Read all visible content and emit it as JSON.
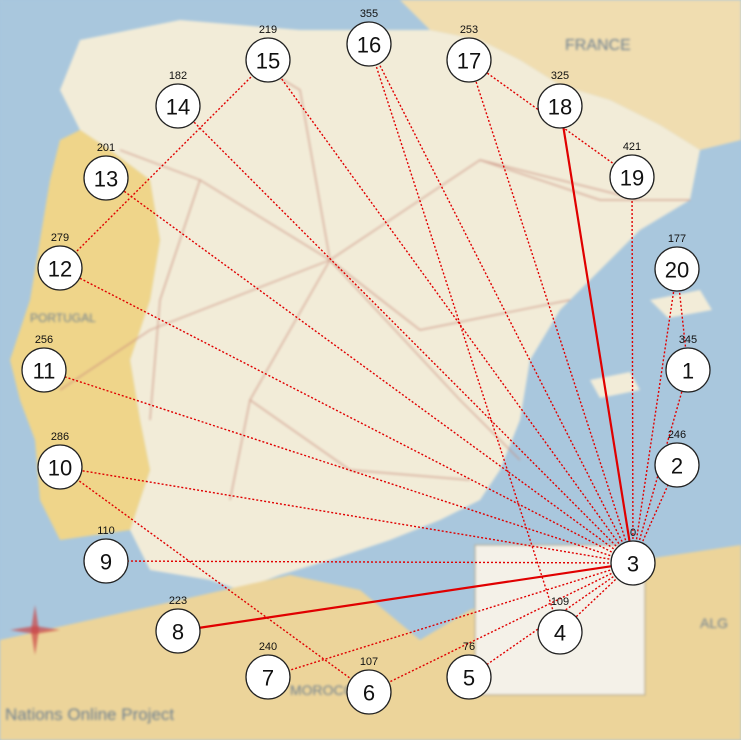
{
  "map": {
    "labels": {
      "france": "FRANCE",
      "portugal": "PORTUGAL",
      "morocco": "MOROCCO",
      "algeria": "ALG",
      "credit": "Nations Online Project"
    },
    "colors": {
      "sea": "#a9c7dd",
      "spain": "#f2ecd8",
      "portugal": "#efd58a",
      "france": "#f0ddb0",
      "africa": "#ecd49a",
      "roads": "#c98c7c"
    }
  },
  "graph": {
    "edge_color": "#e00000",
    "nodes": [
      {
        "id": "1",
        "weight": "345"
      },
      {
        "id": "2",
        "weight": "246"
      },
      {
        "id": "3",
        "weight": "0"
      },
      {
        "id": "4",
        "weight": "109"
      },
      {
        "id": "5",
        "weight": "76"
      },
      {
        "id": "6",
        "weight": "107"
      },
      {
        "id": "7",
        "weight": "240"
      },
      {
        "id": "8",
        "weight": "223"
      },
      {
        "id": "9",
        "weight": "110"
      },
      {
        "id": "10",
        "weight": "286"
      },
      {
        "id": "11",
        "weight": "256"
      },
      {
        "id": "12",
        "weight": "279"
      },
      {
        "id": "13",
        "weight": "201"
      },
      {
        "id": "14",
        "weight": "182"
      },
      {
        "id": "15",
        "weight": "219"
      },
      {
        "id": "16",
        "weight": "355"
      },
      {
        "id": "17",
        "weight": "253"
      },
      {
        "id": "18",
        "weight": "325"
      },
      {
        "id": "19",
        "weight": "421"
      },
      {
        "id": "20",
        "weight": "177"
      }
    ],
    "edges": [
      {
        "from": "3",
        "to": "1",
        "style": "dotted"
      },
      {
        "from": "3",
        "to": "2",
        "style": "dotted"
      },
      {
        "from": "3",
        "to": "4",
        "style": "dotted"
      },
      {
        "from": "3",
        "to": "5",
        "style": "dotted"
      },
      {
        "from": "3",
        "to": "6",
        "style": "dotted"
      },
      {
        "from": "3",
        "to": "7",
        "style": "dotted"
      },
      {
        "from": "3",
        "to": "8",
        "style": "solid"
      },
      {
        "from": "3",
        "to": "9",
        "style": "dotted"
      },
      {
        "from": "3",
        "to": "10",
        "style": "dotted"
      },
      {
        "from": "3",
        "to": "11",
        "style": "dotted"
      },
      {
        "from": "3",
        "to": "12",
        "style": "dotted"
      },
      {
        "from": "3",
        "to": "13",
        "style": "dotted"
      },
      {
        "from": "3",
        "to": "14",
        "style": "dotted"
      },
      {
        "from": "3",
        "to": "15",
        "style": "dotted"
      },
      {
        "from": "3",
        "to": "16",
        "style": "dotted"
      },
      {
        "from": "3",
        "to": "17",
        "style": "dotted"
      },
      {
        "from": "3",
        "to": "18",
        "style": "solid"
      },
      {
        "from": "3",
        "to": "19",
        "style": "dotted"
      },
      {
        "from": "3",
        "to": "20",
        "style": "dotted"
      },
      {
        "from": "20",
        "to": "1",
        "style": "dotted"
      },
      {
        "from": "10",
        "to": "6",
        "style": "dotted"
      },
      {
        "from": "4",
        "to": "16",
        "style": "dotted"
      },
      {
        "from": "12",
        "to": "15",
        "style": "dotted"
      },
      {
        "from": "19",
        "to": "17",
        "style": "dotted"
      }
    ]
  }
}
